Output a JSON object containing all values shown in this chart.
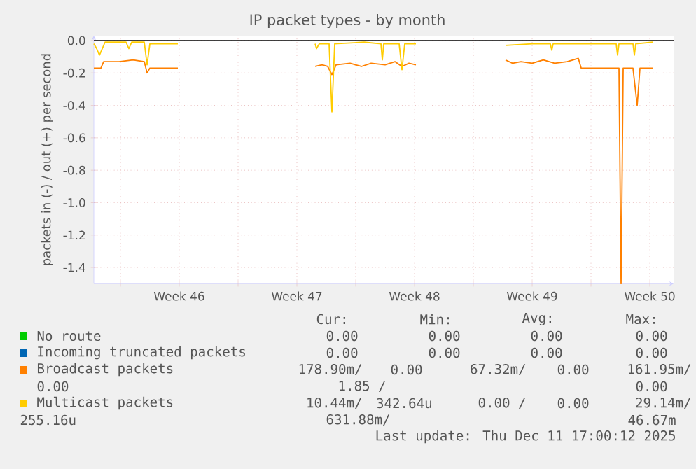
{
  "chart_data": {
    "type": "line",
    "title": "IP packet types - by month",
    "ylabel": "packets in (-) / out (+) per second",
    "xlim": [
      "2025-11-08T10:00",
      "2025-12-12T22:00"
    ],
    "ylim": [
      -1.5,
      0.03
    ],
    "xticks": [
      {
        "value": "2025-11-10T00:00",
        "label": null
      },
      {
        "value": "2025-11-13T12:00",
        "label": "Week 46"
      },
      {
        "value": "2025-11-17T00:00",
        "label": null
      },
      {
        "value": "2025-11-20T12:00",
        "label": "Week 47"
      },
      {
        "value": "2025-11-24T00:00",
        "label": null
      },
      {
        "value": "2025-11-27T12:00",
        "label": "Week 48"
      },
      {
        "value": "2025-12-01T00:00",
        "label": null
      },
      {
        "value": "2025-12-04T12:00",
        "label": "Week 49"
      },
      {
        "value": "2025-12-08T00:00",
        "label": null
      },
      {
        "value": "2025-12-11T12:00",
        "label": "Week 50"
      }
    ],
    "yticks": [
      {
        "value": 0,
        "label": "0.0"
      },
      {
        "value": -0.2,
        "label": "-0.2"
      },
      {
        "value": -0.4,
        "label": "-0.4"
      },
      {
        "value": -0.6,
        "label": "-0.6"
      },
      {
        "value": -0.8,
        "label": "-0.8"
      },
      {
        "value": -1.0,
        "label": "-1.0"
      },
      {
        "value": -1.2,
        "label": "-1.2"
      },
      {
        "value": -1.4,
        "label": "-1.4"
      }
    ],
    "grid": true,
    "legend": "bottom",
    "ref_lines": [
      {
        "axis": "y",
        "value": 0,
        "color": "#000000"
      }
    ],
    "series": [
      {
        "name": "No route",
        "color": "#00cc00"
      },
      {
        "name": "Incoming truncated packets",
        "color": "#0066b3"
      },
      {
        "name": "Broadcast packets",
        "color": "#ff8000",
        "x": [
          "2025-11-08T10:00",
          "2025-11-08T20:00",
          "2025-11-09T00:00",
          "2025-11-09T22:00",
          "2025-11-10T18:00",
          "2025-11-11T10:00",
          "2025-11-11T14:00",
          "2025-11-11T18:00",
          "2025-11-13T10:00",
          "2025-11-17T12:00",
          "2025-11-21T14:00",
          "2025-11-22T00:00",
          "2025-11-22T08:00",
          "2025-11-22T14:00",
          "2025-11-22T20:00",
          "2025-11-23T16:00",
          "2025-11-24T08:00",
          "2025-11-24T22:00",
          "2025-11-25T18:00",
          "2025-11-26T08:00",
          "2025-11-26T18:00",
          "2025-11-27T04:00",
          "2025-11-27T14:00",
          "2025-11-30T08:00",
          "2025-12-02T22:00",
          "2025-12-03T08:00",
          "2025-12-03T20:00",
          "2025-12-04T12:00",
          "2025-12-05T04:00",
          "2025-12-05T20:00",
          "2025-12-06T14:00",
          "2025-12-07T06:00",
          "2025-12-07T10:00",
          "2025-12-09T16:00",
          "2025-12-09T19:00",
          "2025-12-09T22:00",
          "2025-12-10T12:00",
          "2025-12-10T18:00",
          "2025-12-10T22:00",
          "2025-12-11T16:00"
        ],
        "values": [
          -0.17,
          -0.17,
          -0.13,
          -0.13,
          -0.12,
          -0.13,
          -0.2,
          -0.17,
          -0.17,
          null,
          -0.16,
          -0.15,
          -0.16,
          -0.21,
          -0.15,
          -0.14,
          -0.16,
          -0.14,
          -0.15,
          -0.13,
          -0.16,
          -0.14,
          -0.15,
          null,
          -0.12,
          -0.14,
          -0.13,
          -0.14,
          -0.12,
          -0.14,
          -0.13,
          -0.11,
          -0.17,
          -0.17,
          -1.5,
          -0.17,
          -0.17,
          -0.4,
          -0.17,
          -0.17
        ]
      },
      {
        "name": "Multicast packets",
        "color": "#ffcc00",
        "x": [
          "2025-11-08T10:00",
          "2025-11-08T14:00",
          "2025-11-08T18:00",
          "2025-11-08T22:00",
          "2025-11-09T02:00",
          "2025-11-10T08:00",
          "2025-11-10T12:00",
          "2025-11-10T16:00",
          "2025-11-11T10:00",
          "2025-11-11T14:00",
          "2025-11-11T18:00",
          "2025-11-13T10:00",
          "2025-11-17T12:00",
          "2025-11-21T14:00",
          "2025-11-21T16:00",
          "2025-11-21T20:00",
          "2025-11-22T10:00",
          "2025-11-22T14:00",
          "2025-11-22T18:00",
          "2025-11-24T12:00",
          "2025-11-25T12:00",
          "2025-11-25T14:00",
          "2025-11-25T16:00",
          "2025-11-26T14:00",
          "2025-11-26T18:00",
          "2025-11-26T22:00",
          "2025-11-27T14:00",
          "2025-11-30T08:00",
          "2025-12-02T22:00",
          "2025-12-04T12:00",
          "2025-12-05T14:00",
          "2025-12-05T16:00",
          "2025-12-05T18:00",
          "2025-12-07T20:00",
          "2025-12-09T12:00",
          "2025-12-09T14:00",
          "2025-12-09T16:00",
          "2025-12-10T12:00",
          "2025-12-10T14:00",
          "2025-12-10T16:00",
          "2025-12-11T16:00"
        ],
        "values": [
          -0.02,
          -0.05,
          -0.09,
          -0.05,
          -0.01,
          -0.01,
          -0.05,
          -0.01,
          -0.01,
          -0.15,
          -0.02,
          -0.02,
          null,
          -0.02,
          -0.05,
          -0.02,
          -0.02,
          -0.44,
          -0.02,
          -0.01,
          -0.02,
          -0.12,
          -0.02,
          -0.02,
          -0.18,
          -0.02,
          -0.02,
          null,
          -0.03,
          -0.02,
          -0.02,
          -0.06,
          -0.02,
          -0.02,
          -0.02,
          -0.09,
          -0.02,
          -0.02,
          -0.09,
          -0.02,
          -0.01
        ]
      }
    ],
    "annotations": [
      "Cur:",
      "Min:",
      "Avg:",
      "Max:",
      "0.00",
      "0.00",
      "0.00",
      "0.00",
      "0.00",
      "0.00",
      "0.00",
      "0.00",
      "178.90m/",
      "0.00",
      "67.32m/",
      "0.00",
      "161.95m/",
      "0.00",
      "1.85 /",
      "0.00",
      "10.44m/",
      "342.64u",
      "0.00 /",
      "0.00",
      "29.14m/",
      "255.16u",
      "631.88m/",
      "46.67m",
      "Last update: Thu Dec 11 17:00:12 2025"
    ]
  }
}
